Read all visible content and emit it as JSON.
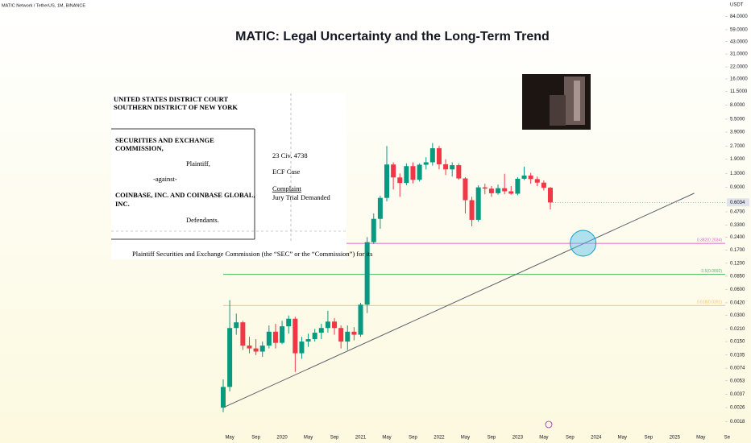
{
  "header": {
    "symbol": "MATIC Network / TetherUS, 1M, BINANCE"
  },
  "chart_data": {
    "type": "candlestick",
    "title": "MATIC: Legal Uncertainty and the Long-Term Trend",
    "y_axis_label": "USDT",
    "log_scale": true,
    "up_color": "#089981",
    "down_color": "#f23645",
    "categories": [
      null,
      "May",
      null,
      null,
      null,
      "Sep",
      null,
      null,
      null,
      "2020",
      null,
      null,
      null,
      "May",
      null,
      null,
      null,
      "Sep",
      null,
      null,
      null,
      "2021",
      null,
      null,
      null,
      "May",
      null,
      null,
      null,
      "Sep",
      null,
      null,
      null,
      "2022",
      null,
      null,
      null,
      "May",
      null,
      null,
      null,
      "Sep",
      null,
      null,
      null,
      "2023",
      null,
      null,
      null,
      "May",
      null,
      null,
      null,
      "Sep",
      null,
      null,
      null,
      "2024",
      null,
      null,
      null,
      "May",
      null,
      null,
      null,
      "Sep",
      null,
      null,
      null,
      "2025",
      null,
      null,
      null,
      "May",
      null,
      null,
      null,
      "Se"
    ],
    "open": [
      0.0026,
      0.0045,
      0.0215,
      0.025,
      0.0135,
      0.0125,
      0.0115,
      0.0135,
      0.0195,
      0.0145,
      0.0225,
      0.0275,
      0.011,
      0.015,
      0.016,
      0.019,
      0.0215,
      0.0255,
      0.0215,
      0.015,
      0.0195,
      0.018,
      0.04,
      0.21,
      0.39,
      0.68,
      1.65,
      1.17,
      1.01,
      1.58,
      1.1,
      1.64,
      1.75,
      2.54,
      1.66,
      1.45,
      1.62,
      1.14,
      0.64,
      0.38,
      0.9,
      0.87,
      0.77,
      0.88,
      0.81,
      0.76,
      1.13,
      1.23,
      1.12,
      1.02,
      0.89,
      null,
      null,
      null,
      null,
      null,
      null,
      null,
      null,
      null,
      null,
      null,
      null,
      null,
      null,
      null,
      null,
      null,
      null,
      null,
      null,
      null,
      null,
      null,
      null,
      null,
      null,
      null
    ],
    "high": [
      0.0055,
      0.045,
      0.0315,
      0.026,
      0.017,
      0.016,
      0.015,
      0.023,
      0.024,
      0.026,
      0.03,
      0.029,
      0.017,
      0.0185,
      0.021,
      0.024,
      0.034,
      0.028,
      0.023,
      0.023,
      0.022,
      0.042,
      0.24,
      0.45,
      0.72,
      2.7,
      1.75,
      1.3,
      1.7,
      1.75,
      1.7,
      2.0,
      2.92,
      2.7,
      1.9,
      1.75,
      1.7,
      1.18,
      0.7,
      0.95,
      0.99,
      0.93,
      0.97,
      1.29,
      0.93,
      1.18,
      1.56,
      1.32,
      1.2,
      1.08,
      0.91,
      null,
      null,
      null,
      null,
      null,
      null,
      null,
      null,
      null,
      null,
      null,
      null,
      null,
      null,
      null,
      null,
      null,
      null,
      null,
      null,
      null,
      null,
      null,
      null,
      null,
      null,
      null
    ],
    "low": [
      0.0023,
      0.004,
      0.018,
      0.012,
      0.011,
      0.0105,
      0.01,
      0.0125,
      0.0125,
      0.014,
      0.0185,
      0.0067,
      0.0095,
      0.013,
      0.015,
      0.016,
      0.019,
      0.018,
      0.0125,
      0.012,
      0.0155,
      0.017,
      0.032,
      0.2,
      0.3,
      0.62,
      0.85,
      0.7,
      0.95,
      1.0,
      1.05,
      1.45,
      1.6,
      1.45,
      1.25,
      1.2,
      1.1,
      0.45,
      0.32,
      0.36,
      0.75,
      0.7,
      0.74,
      0.75,
      0.74,
      0.73,
      1.09,
      0.99,
      0.93,
      0.83,
      0.5,
      null,
      null,
      null,
      null,
      null,
      null,
      null,
      null,
      null,
      null,
      null,
      null,
      null,
      null,
      null,
      null,
      null,
      null,
      null,
      null,
      null,
      null,
      null,
      null,
      null,
      null,
      null
    ],
    "close": [
      0.0045,
      0.0215,
      0.025,
      0.0135,
      0.0125,
      0.0115,
      0.0135,
      0.0195,
      0.0145,
      0.0225,
      0.0275,
      0.011,
      0.015,
      0.016,
      0.019,
      0.0215,
      0.0255,
      0.0215,
      0.015,
      0.0195,
      0.018,
      0.04,
      0.21,
      0.39,
      0.68,
      1.65,
      1.17,
      1.01,
      1.58,
      1.1,
      1.64,
      1.75,
      2.54,
      1.66,
      1.45,
      1.62,
      1.14,
      0.64,
      0.38,
      0.9,
      0.87,
      0.77,
      0.88,
      0.81,
      0.76,
      1.13,
      1.23,
      1.12,
      1.02,
      0.89,
      0.6034,
      null,
      null,
      null,
      null,
      null,
      null,
      null,
      null,
      null,
      null,
      null,
      null,
      null,
      null,
      null,
      null,
      null,
      null,
      null,
      null,
      null,
      null,
      null,
      null,
      null,
      null,
      null
    ],
    "ylim": [
      0.0014,
      130
    ],
    "yticks": [
      {
        "value": 84,
        "label": "84.0000"
      },
      {
        "value": 59,
        "label": "59.0000"
      },
      {
        "value": 43,
        "label": "43.0000"
      },
      {
        "value": 31,
        "label": "31.0000"
      },
      {
        "value": 22,
        "label": "22.0000"
      },
      {
        "value": 16,
        "label": "16.0000"
      },
      {
        "value": 11.5,
        "label": "11.5000"
      },
      {
        "value": 8,
        "label": "8.0000"
      },
      {
        "value": 5.5,
        "label": "5.5000"
      },
      {
        "value": 3.9,
        "label": "3.9000"
      },
      {
        "value": 2.7,
        "label": "2.7000"
      },
      {
        "value": 1.9,
        "label": "1.9000"
      },
      {
        "value": 1.3,
        "label": "1.3000"
      },
      {
        "value": 0.9,
        "label": "0.9000"
      },
      {
        "value": 0.47,
        "label": "0.4700"
      },
      {
        "value": 0.33,
        "label": "0.3300"
      },
      {
        "value": 0.24,
        "label": "0.2400"
      },
      {
        "value": 0.17,
        "label": "0.1700"
      },
      {
        "value": 0.12,
        "label": "0.1200"
      },
      {
        "value": 0.085,
        "label": "0.0850"
      },
      {
        "value": 0.06,
        "label": "0.0600"
      },
      {
        "value": 0.042,
        "label": "0.0420"
      },
      {
        "value": 0.03,
        "label": "0.0300"
      },
      {
        "value": 0.021,
        "label": "0.0210"
      },
      {
        "value": 0.015,
        "label": "0.0150"
      },
      {
        "value": 0.0105,
        "label": "0.0105"
      },
      {
        "value": 0.0074,
        "label": "0.0074"
      },
      {
        "value": 0.0053,
        "label": "0.0053"
      },
      {
        "value": 0.0037,
        "label": "0.0037"
      },
      {
        "value": 0.0026,
        "label": "0.0026"
      },
      {
        "value": 0.0018,
        "label": "0.0018"
      }
    ],
    "last_price": {
      "value": 0.6034,
      "label": "0.6034"
    },
    "levels": [
      {
        "value": 0.2034,
        "label": "0.382(0.2034)",
        "color": "#d63fc4"
      },
      {
        "value": 0.0892,
        "label": "0.5(0.0892)",
        "color": "#2eaa4a"
      },
      {
        "value": 0.0391,
        "label": "0.618(0.0391)",
        "color": "#f5b731"
      }
    ],
    "trendline": {
      "x": [
        0,
        72
      ],
      "values": [
        0.0026,
        0.77
      ],
      "color": "#5d606b"
    },
    "highlight": {
      "x": 55,
      "value": 0.204
    }
  },
  "document": {
    "court": [
      "UNITED STATES DISTRICT COURT",
      "SOUTHERN DISTRICT OF NEW YORK"
    ],
    "plaintiff": [
      "SECURITIES AND EXCHANGE",
      "COMMISSION,"
    ],
    "plaintiff_role": "Plaintiff,",
    "against": "-against-",
    "defendant": [
      "COINBASE, INC. AND COINBASE GLOBAL,",
      "INC."
    ],
    "defendant_role": "Defendants.",
    "case_number": "23 Civ. 4738",
    "case_type": "ECF Case",
    "filing": "Complaint",
    "jury": "Jury Trial Demanded",
    "body": "Plaintiff Securities and Exchange Commission (the “SEC” or the “Commission”) for its"
  }
}
